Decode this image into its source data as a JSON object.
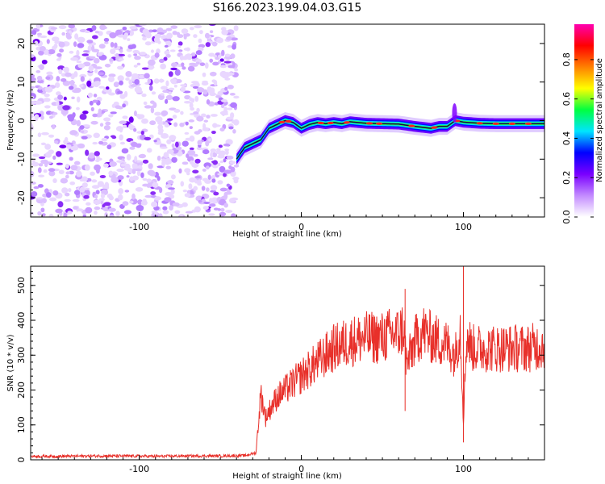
{
  "title": "S166.2023.199.04.03.G15",
  "chart_data": [
    {
      "type": "heatmap",
      "xlabel": "Height of straight line (km)",
      "ylabel": "Frequency (Hz)",
      "xlim": [
        -167,
        150
      ],
      "ylim": [
        -25,
        25
      ],
      "x_ticks": [
        -100,
        0,
        100
      ],
      "y_ticks": [
        -20,
        -10,
        0,
        10,
        20
      ],
      "colorbar": {
        "label": "Normalized spectral amplitude",
        "range": [
          0,
          1
        ],
        "ticks": [
          "0.0",
          "0.2",
          "0.4",
          "0.6",
          "0.8"
        ],
        "colors": [
          "#ffffff",
          "#c38bff",
          "#7a00ff",
          "#0000ff",
          "#00e5ff",
          "#00ff40",
          "#ffff00",
          "#ff8000",
          "#ff0000",
          "#ff00b0"
        ]
      },
      "noise_region_x": [
        -167,
        -40
      ],
      "ridge_x": [
        -40,
        -35,
        -30,
        -25,
        -20,
        -15,
        -10,
        -5,
        0,
        5,
        10,
        15,
        20,
        25,
        30,
        40,
        50,
        60,
        70,
        80,
        85,
        90,
        95,
        100,
        110,
        120,
        130,
        140,
        150
      ],
      "ridge_freq": [
        -10,
        -7,
        -6,
        -5,
        -2,
        -1,
        0,
        -0.5,
        -2,
        -1,
        -0.5,
        -0.8,
        -0.5,
        -0.8,
        -0.3,
        -0.7,
        -0.8,
        -0.9,
        -1.5,
        -2,
        -1.5,
        -1.5,
        0,
        -0.4,
        -0.7,
        -0.8,
        -0.8,
        -0.8,
        -0.8
      ]
    },
    {
      "type": "line",
      "xlabel": "Height of straight line (km)",
      "ylabel": "SNR (10 * v/v)",
      "xlim": [
        -167,
        150
      ],
      "ylim": [
        0,
        555
      ],
      "x_ticks": [
        -100,
        0,
        100
      ],
      "y_ticks": [
        0,
        100,
        200,
        300,
        400,
        500
      ],
      "color": "#e8302a",
      "series": [
        {
          "x": [
            -167,
            -150,
            -130,
            -110,
            -90,
            -70,
            -50,
            -35,
            -28,
            -25,
            -22,
            -20,
            -15,
            -10,
            -5,
            0,
            5,
            10,
            15,
            20,
            25,
            30,
            40,
            50,
            55,
            60,
            63,
            65,
            70,
            75,
            80,
            85,
            90,
            95,
            98,
            100,
            102,
            105,
            110,
            120,
            130,
            140,
            150
          ],
          "y": [
            10,
            10,
            11,
            11,
            10,
            11,
            11,
            12,
            20,
            190,
            120,
            140,
            180,
            200,
            220,
            240,
            260,
            280,
            300,
            320,
            330,
            340,
            350,
            350,
            360,
            360,
            380,
            270,
            340,
            370,
            350,
            340,
            330,
            300,
            380,
            120,
            360,
            320,
            320,
            320,
            320,
            320,
            330
          ]
        }
      ]
    }
  ]
}
